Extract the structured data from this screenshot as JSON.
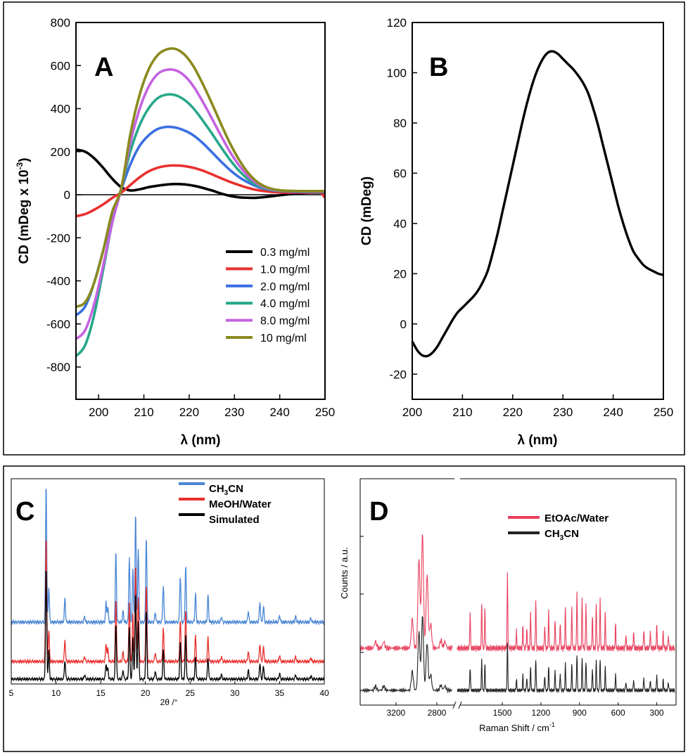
{
  "chart_data": [
    {
      "type": "line",
      "panel": "A",
      "xlabel": "λ (nm)",
      "ylabel": "CD (mDeg x 10-3)",
      "ylabel_main": "CD (mDeg x 10",
      "ylabel_exp": "-3",
      "ylabel_close": ")",
      "xlim": [
        195,
        250
      ],
      "ylim": [
        -950,
        800
      ],
      "xticks": [
        "200",
        "210",
        "220",
        "230",
        "240",
        "250"
      ],
      "yticks": [
        "-800",
        "-600",
        "-400",
        "-200",
        "0",
        "200",
        "400",
        "600",
        "800"
      ],
      "legend_position": "bottom-right",
      "series": [
        {
          "name": "0.3 mg/ml",
          "color": "#000000",
          "x": [
            195,
            197,
            199,
            201,
            203,
            205,
            207,
            209,
            211,
            213,
            215,
            217,
            219,
            221,
            223,
            225,
            227,
            229,
            231,
            233,
            235,
            237,
            239,
            241,
            243,
            245,
            247,
            249,
            250
          ],
          "y": [
            210,
            200,
            170,
            125,
            75,
            35,
            20,
            25,
            35,
            42,
            47,
            50,
            48,
            42,
            32,
            20,
            6,
            -5,
            -12,
            -14,
            -14,
            -10,
            -5,
            0,
            4,
            8,
            10,
            10,
            10
          ]
        },
        {
          "name": "1.0 mg/ml",
          "color": "#e8302e",
          "x": [
            195,
            197,
            199,
            201,
            203,
            205,
            207,
            209,
            211,
            213,
            215,
            217,
            219,
            221,
            223,
            225,
            227,
            229,
            231,
            233,
            235,
            237,
            239,
            241,
            243,
            245,
            247,
            249,
            250
          ],
          "y": [
            -100,
            -90,
            -70,
            -45,
            -15,
            10,
            45,
            80,
            108,
            125,
            134,
            136,
            133,
            125,
            112,
            95,
            77,
            60,
            45,
            32,
            22,
            16,
            12,
            10,
            10,
            10,
            10,
            10,
            -15
          ]
        },
        {
          "name": "2.0 mg/ml",
          "color": "#3a6fe0",
          "x": [
            195,
            197,
            199,
            201,
            203,
            205,
            207,
            209,
            211,
            213,
            215,
            217,
            219,
            221,
            223,
            225,
            227,
            229,
            231,
            233,
            235,
            237,
            239,
            241,
            243,
            245,
            247,
            249,
            250
          ],
          "y": [
            -560,
            -520,
            -410,
            -260,
            -100,
            25,
            140,
            225,
            275,
            305,
            315,
            312,
            298,
            275,
            240,
            198,
            155,
            115,
            82,
            57,
            38,
            26,
            19,
            16,
            14,
            13,
            13,
            13,
            13
          ]
        },
        {
          "name": "4.0 mg/ml",
          "color": "#27a88a",
          "x": [
            195,
            197,
            199,
            201,
            203,
            205,
            207,
            209,
            211,
            213,
            215,
            217,
            219,
            221,
            223,
            225,
            227,
            229,
            231,
            233,
            235,
            237,
            239,
            241,
            243,
            245,
            247,
            249,
            250
          ],
          "y": [
            -750,
            -700,
            -560,
            -350,
            -130,
            30,
            200,
            320,
            400,
            448,
            465,
            462,
            440,
            400,
            345,
            285,
            222,
            163,
            112,
            72,
            44,
            28,
            20,
            17,
            16,
            15,
            15,
            15,
            15
          ]
        },
        {
          "name": "8.0 mg/ml",
          "color": "#c463e0",
          "x": [
            195,
            197,
            199,
            201,
            203,
            205,
            207,
            209,
            211,
            213,
            215,
            217,
            219,
            221,
            223,
            225,
            227,
            229,
            231,
            233,
            235,
            237,
            239,
            241,
            243,
            245,
            247,
            249,
            250
          ],
          "y": [
            -670,
            -630,
            -510,
            -330,
            -130,
            30,
            240,
            395,
            500,
            560,
            580,
            578,
            552,
            502,
            432,
            355,
            275,
            200,
            137,
            87,
            52,
            32,
            22,
            18,
            17,
            16,
            16,
            16,
            16
          ]
        },
        {
          "name": "10  mg/ml",
          "color": "#8a8a1e",
          "x": [
            195,
            197,
            199,
            201,
            203,
            205,
            207,
            209,
            211,
            213,
            215,
            217,
            219,
            221,
            223,
            225,
            227,
            229,
            231,
            233,
            235,
            237,
            239,
            241,
            243,
            245,
            247,
            249,
            250
          ],
          "y": [
            -520,
            -500,
            -410,
            -260,
            -80,
            30,
            280,
            460,
            580,
            648,
            675,
            677,
            650,
            595,
            515,
            425,
            330,
            240,
            163,
            102,
            60,
            36,
            24,
            19,
            18,
            17,
            17,
            17,
            17
          ]
        }
      ]
    },
    {
      "type": "line",
      "panel": "B",
      "xlabel": "λ (nm)",
      "ylabel": "CD (mDeg)",
      "xlim": [
        200,
        250
      ],
      "ylim": [
        -30,
        120
      ],
      "xticks": [
        "200",
        "210",
        "220",
        "230",
        "240",
        "250"
      ],
      "yticks": [
        "-20",
        "0",
        "20",
        "40",
        "60",
        "80",
        "100",
        "120"
      ],
      "series": [
        {
          "color": "#000000",
          "x": [
            200,
            201,
            202,
            203,
            204,
            205,
            206,
            207,
            208,
            209,
            210,
            211,
            212,
            213,
            214,
            215,
            216,
            217,
            218,
            219,
            220,
            221,
            222,
            223,
            224,
            225,
            226,
            227,
            228,
            229,
            230,
            231,
            232,
            233,
            234,
            235,
            236,
            237,
            238,
            239,
            240,
            241,
            242,
            243,
            244,
            245,
            246,
            247,
            248,
            249,
            250
          ],
          "y": [
            -7,
            -10.5,
            -12.5,
            -12.8,
            -11.5,
            -9,
            -5.5,
            -2,
            1.5,
            4.5,
            6.5,
            8.5,
            10.5,
            13,
            16.5,
            21,
            28,
            36,
            45,
            54,
            63,
            72,
            81,
            89,
            96,
            101.5,
            105.5,
            108,
            108.5,
            107.5,
            105.5,
            103.5,
            101.5,
            99,
            96,
            92,
            86,
            79,
            71,
            63,
            55,
            47,
            40,
            34,
            29,
            26,
            23.5,
            22,
            21,
            20,
            19.5
          ]
        }
      ]
    },
    {
      "type": "line",
      "panel": "C",
      "xlabel": "2θ /°",
      "xlim": [
        5,
        40
      ],
      "xticks": [
        "5",
        "10",
        "15",
        "20",
        "25",
        "30",
        "35",
        "40"
      ],
      "legend_position": "top-right",
      "peaks": [
        [
          8.9,
          1.0
        ],
        [
          9.2,
          0.25
        ],
        [
          11.0,
          0.17
        ],
        [
          13.2,
          0.04
        ],
        [
          15.6,
          0.14
        ],
        [
          15.8,
          0.1
        ],
        [
          16.7,
          0.5
        ],
        [
          17.5,
          0.08
        ],
        [
          18.2,
          0.46
        ],
        [
          18.6,
          0.38
        ],
        [
          18.9,
          0.78
        ],
        [
          19.2,
          0.52
        ],
        [
          20.1,
          0.61
        ],
        [
          21.1,
          0.07
        ],
        [
          22.0,
          0.26
        ],
        [
          23.9,
          0.33
        ],
        [
          24.5,
          0.4
        ],
        [
          25.6,
          0.2
        ],
        [
          27.0,
          0.19
        ],
        [
          28.5,
          0.04
        ],
        [
          31.5,
          0.08
        ],
        [
          32.8,
          0.14
        ],
        [
          33.2,
          0.11
        ],
        [
          35.0,
          0.05
        ],
        [
          36.8,
          0.04
        ],
        [
          38.5,
          0.03
        ]
      ],
      "series": [
        {
          "name": "CH3CN",
          "label_main": "CH",
          "label_sub": "3",
          "label_rest": "CN",
          "color": "#4a86d6"
        },
        {
          "name": "MeOH/Water",
          "color": "#e8302e"
        },
        {
          "name": "Simulated",
          "color": "#000000"
        }
      ]
    },
    {
      "type": "line",
      "panel": "D",
      "xlabel": "Raman Shift / cm-1",
      "xlabel_main": "Raman Shift / cm",
      "xlabel_exp": "-1",
      "ylabel": "Counts / a.u.",
      "xticks": [
        "3200",
        "2800",
        "1500",
        "1200",
        "900",
        "600",
        "300"
      ],
      "axis_break": true,
      "legend_position": "top-right",
      "peaks_high": [
        [
          3400,
          0.04
        ],
        [
          3320,
          0.04
        ],
        [
          3040,
          0.18
        ],
        [
          2975,
          0.55
        ],
        [
          2940,
          0.7
        ],
        [
          2895,
          0.45
        ],
        [
          2860,
          0.15
        ],
        [
          2760,
          0.05
        ],
        [
          2720,
          0.04
        ]
      ],
      "peaks_low": [
        [
          1750,
          0.22
        ],
        [
          1660,
          0.28
        ],
        [
          1635,
          0.25
        ],
        [
          1460,
          0.45
        ],
        [
          1390,
          0.1
        ],
        [
          1340,
          0.14
        ],
        [
          1310,
          0.12
        ],
        [
          1280,
          0.22
        ],
        [
          1240,
          0.3
        ],
        [
          1170,
          0.14
        ],
        [
          1140,
          0.22
        ],
        [
          1090,
          0.18
        ],
        [
          1050,
          0.16
        ],
        [
          1010,
          0.25
        ],
        [
          960,
          0.25
        ],
        [
          920,
          0.35
        ],
        [
          880,
          0.3
        ],
        [
          850,
          0.28
        ],
        [
          800,
          0.2
        ],
        [
          770,
          0.28
        ],
        [
          740,
          0.3
        ],
        [
          700,
          0.22
        ],
        [
          620,
          0.15
        ],
        [
          540,
          0.08
        ],
        [
          480,
          0.1
        ],
        [
          400,
          0.12
        ],
        [
          350,
          0.1
        ],
        [
          300,
          0.14
        ],
        [
          250,
          0.1
        ],
        [
          210,
          0.08
        ]
      ],
      "series": [
        {
          "name": "EtOAc/Water",
          "color": "#e8405e"
        },
        {
          "name": "CH3CN",
          "label_main": "CH",
          "label_sub": "3",
          "label_rest": "CN",
          "color": "#222222"
        }
      ]
    }
  ]
}
